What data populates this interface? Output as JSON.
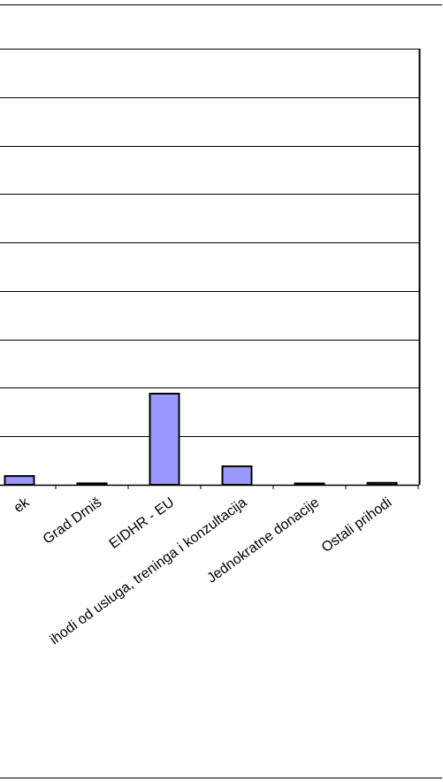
{
  "chart_data": {
    "type": "bar",
    "categories": [
      "Ured za udruge Vlade RH / Grad Šibenik",
      "Grad Drniš",
      "EIDHR - EU",
      "Prihodi od usluga, treninga i konzultacija",
      "Jednokratne donacije",
      "Ostali prihodi"
    ],
    "visible_labels": [
      "ek",
      "Grad Drniš",
      "EIDHR - EU",
      "ihodi od usluga, treninga i konzultacija",
      "Jednokratne donacije",
      "Ostali prihodi"
    ],
    "values": [
      1.8,
      0.3,
      18.8,
      3.8,
      0.2,
      0.4
    ],
    "ylim": [
      0,
      90
    ],
    "grid": true,
    "legend": "none",
    "title": "",
    "xlabel": "",
    "ylabel": "",
    "colors": {
      "bar_fill": "#9999ff",
      "bar_stroke": "#000000",
      "gridline": "#000000",
      "background": "#ffffff"
    }
  }
}
